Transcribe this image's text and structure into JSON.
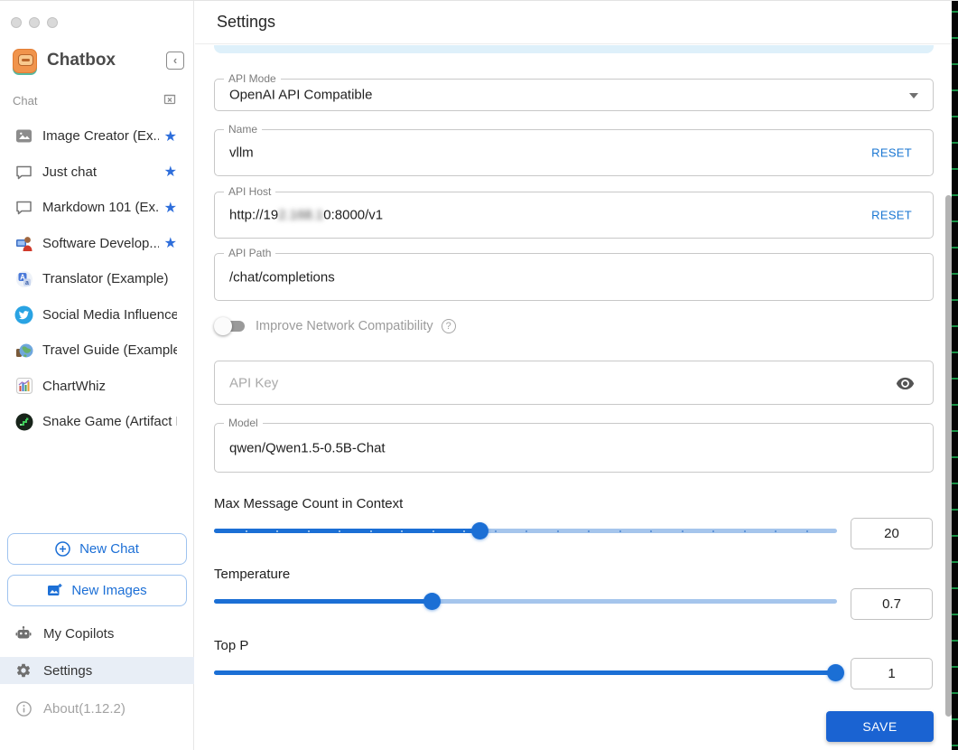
{
  "window": {
    "traffic_lights": [
      "close",
      "minimize",
      "zoom"
    ]
  },
  "icons": {
    "star": "★",
    "collapse": "‹",
    "question": "?",
    "info": "i",
    "translator_a": "A",
    "translator_b": "a"
  },
  "sidebar": {
    "app_title": "Chatbox",
    "section_label": "Chat",
    "chats": [
      {
        "label": "Image Creator (Ex...",
        "icon": "image-icon",
        "starred": true
      },
      {
        "label": "Just chat",
        "icon": "chat-bubble-icon",
        "starred": true
      },
      {
        "label": "Markdown 101 (Ex...",
        "icon": "chat-bubble-icon",
        "starred": true
      },
      {
        "label": "Software Develop...",
        "icon": "developer-emoji-icon",
        "starred": true
      },
      {
        "label": "Translator (Example)",
        "icon": "translator-emoji-icon",
        "starred": false
      },
      {
        "label": "Social Media Influencer ...",
        "icon": "twitter-icon",
        "starred": false
      },
      {
        "label": "Travel Guide (Example)",
        "icon": "globe-emoji-icon",
        "starred": false
      },
      {
        "label": "ChartWhiz",
        "icon": "chart-emoji-icon",
        "starred": false
      },
      {
        "label": "Snake Game (Artifact E...",
        "icon": "snake-game-icon",
        "starred": false
      }
    ],
    "new_chat_label": "New Chat",
    "new_images_label": "New Images",
    "my_copilots_label": "My Copilots",
    "settings_label": "Settings",
    "about_label": "About(1.12.2)"
  },
  "header": {
    "title": "Settings"
  },
  "form": {
    "api_mode": {
      "label": "API Mode",
      "value": "OpenAI API Compatible"
    },
    "name": {
      "label": "Name",
      "value": "vllm",
      "reset_label": "RESET"
    },
    "api_host": {
      "label": "API Host",
      "value_prefix": "http://19",
      "value_redacted": "2.168.1",
      "value_suffix": "0:8000/v1",
      "reset_label": "RESET"
    },
    "api_path": {
      "label": "API Path",
      "value": "/chat/completions"
    },
    "network_toggle": {
      "label": "Improve Network Compatibility",
      "state": "off"
    },
    "api_key": {
      "placeholder": "API Key",
      "value": ""
    },
    "model": {
      "label": "Model",
      "value": "qwen/Qwen1.5-0.5B-Chat"
    },
    "sliders": [
      {
        "label": "Max Message Count in Context",
        "value": "20",
        "percent": 42.8,
        "marks": true
      },
      {
        "label": "Temperature",
        "value": "0.7",
        "percent": 35,
        "marks": false
      },
      {
        "label": "Top P",
        "value": "1",
        "percent": 99.9,
        "marks": false
      }
    ],
    "save_label": "SAVE"
  },
  "colors": {
    "primary": "#1976d2",
    "slider_fill": "#1b6fd5",
    "slider_rail": "#a5c5ec",
    "settings_row_bg": "#e8eef6",
    "save_button": "#1a63d2",
    "star": "#2e6edb"
  }
}
